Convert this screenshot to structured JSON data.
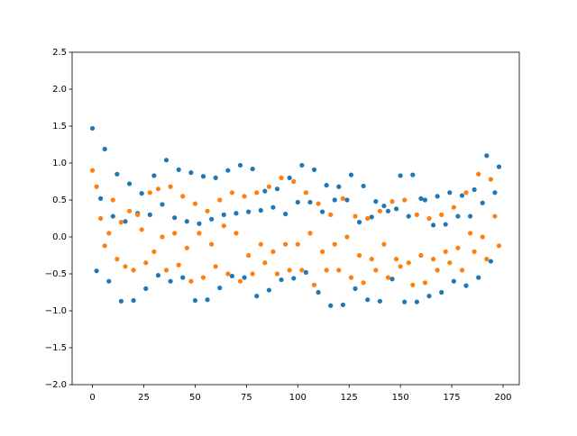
{
  "chart_data": {
    "type": "scatter",
    "x": [
      0,
      2,
      4,
      6,
      8,
      10,
      12,
      14,
      16,
      18,
      20,
      22,
      24,
      26,
      28,
      30,
      32,
      34,
      36,
      38,
      40,
      42,
      44,
      46,
      48,
      50,
      52,
      54,
      56,
      58,
      60,
      62,
      64,
      66,
      68,
      70,
      72,
      74,
      76,
      78,
      80,
      82,
      84,
      86,
      88,
      90,
      92,
      94,
      96,
      98,
      100,
      102,
      104,
      106,
      108,
      110,
      112,
      114,
      116,
      118,
      120,
      122,
      124,
      126,
      128,
      130,
      132,
      134,
      136,
      138,
      140,
      142,
      144,
      146,
      148,
      150,
      152,
      154,
      156,
      158,
      160,
      162,
      164,
      166,
      168,
      170,
      172,
      174,
      176,
      178,
      180,
      182,
      184,
      186,
      188,
      190,
      192,
      194,
      196,
      198
    ],
    "series": [
      {
        "color": "#1f77b4",
        "values": [
          1.47,
          -0.46,
          0.52,
          1.19,
          -0.6,
          0.28,
          0.85,
          -0.87,
          0.21,
          0.72,
          -0.86,
          0.32,
          0.59,
          -0.7,
          0.3,
          0.83,
          -0.52,
          0.44,
          1.04,
          -0.6,
          0.26,
          0.91,
          -0.55,
          0.21,
          0.87,
          -0.86,
          0.18,
          0.82,
          -0.85,
          0.24,
          0.8,
          -0.69,
          0.3,
          0.9,
          -0.53,
          0.32,
          0.97,
          -0.55,
          0.34,
          0.92,
          -0.8,
          0.36,
          0.62,
          -0.72,
          0.4,
          0.65,
          -0.58,
          0.31,
          0.8,
          -0.56,
          0.47,
          0.97,
          -0.48,
          0.47,
          0.91,
          -0.75,
          0.34,
          0.7,
          -0.93,
          0.5,
          0.68,
          -0.92,
          0.5,
          0.84,
          -0.7,
          0.2,
          0.69,
          -0.85,
          0.27,
          0.48,
          -0.87,
          0.42,
          0.35,
          -0.57,
          0.38,
          0.83,
          -0.88,
          0.28,
          0.84,
          -0.88,
          0.52,
          0.5,
          -0.8,
          0.16,
          0.55,
          -0.75,
          0.17,
          0.6,
          -0.6,
          0.28,
          0.56,
          -0.66,
          0.28,
          0.64,
          -0.55,
          0.46,
          1.1,
          -0.33,
          0.6,
          0.95
        ]
      },
      {
        "color": "#ff7f0e",
        "values": [
          0.9,
          0.68,
          0.25,
          -0.12,
          0.05,
          0.5,
          -0.3,
          0.2,
          -0.4,
          0.35,
          -0.45,
          0.3,
          0.1,
          -0.35,
          0.6,
          -0.2,
          0.65,
          0,
          -0.45,
          0.68,
          0.05,
          -0.38,
          0.55,
          -0.15,
          -0.6,
          0.45,
          0.05,
          -0.55,
          0.35,
          -0.1,
          -0.4,
          0.5,
          0.15,
          -0.5,
          0.6,
          0.05,
          -0.6,
          0.55,
          -0.25,
          -0.5,
          0.6,
          -0.1,
          -0.35,
          0.68,
          -0.2,
          -0.5,
          0.8,
          -0.1,
          -0.45,
          0.75,
          -0.1,
          -0.45,
          0.6,
          0.05,
          -0.65,
          0.45,
          -0.2,
          -0.45,
          0.3,
          -0.1,
          -0.45,
          0.52,
          0,
          -0.55,
          0.28,
          -0.25,
          -0.62,
          0.25,
          -0.3,
          -0.45,
          0.35,
          -0.1,
          -0.55,
          0.48,
          -0.3,
          -0.4,
          0.5,
          -0.35,
          -0.65,
          0.3,
          -0.25,
          -0.62,
          0.25,
          -0.3,
          -0.45,
          0.3,
          -0.2,
          -0.35,
          0.4,
          -0.15,
          -0.45,
          0.6,
          0.05,
          -0.2,
          0.85,
          0,
          -0.3,
          0.78,
          0.28,
          -0.12
        ]
      }
    ],
    "xlim": [
      -9.9,
      207.9
    ],
    "xticks": [
      0,
      25,
      50,
      75,
      100,
      125,
      150,
      175,
      200
    ],
    "ylim": [
      -2,
      2.5
    ],
    "yticks": [
      {
        "value": -2,
        "label": "−2.0"
      },
      {
        "value": -1.5,
        "label": "−1.5"
      },
      {
        "value": -1,
        "label": "−1.0"
      },
      {
        "value": -0.5,
        "label": "−0.5"
      },
      {
        "value": 0,
        "label": "0.0"
      },
      {
        "value": 0.5,
        "label": "0.5"
      },
      {
        "value": 1,
        "label": "1.0"
      },
      {
        "value": 1.5,
        "label": "1.5"
      },
      {
        "value": 2,
        "label": "2.0"
      },
      {
        "value": 2.5,
        "label": "2.5"
      }
    ]
  }
}
